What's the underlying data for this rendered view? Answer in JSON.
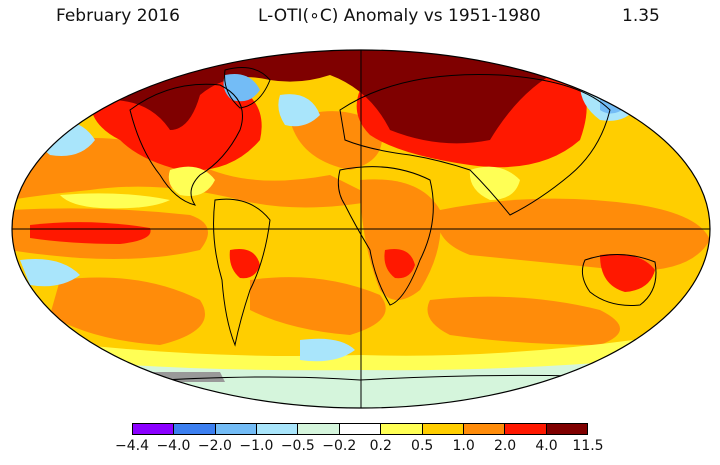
{
  "header": {
    "date": "February 2016",
    "title": "L-OTI(∘C) Anomaly vs 1951-1980",
    "global_mean": "1.35"
  },
  "legend": {
    "bins": [
      {
        "color": "#8b00ff"
      },
      {
        "color": "#3c7ff0"
      },
      {
        "color": "#73bcf6"
      },
      {
        "color": "#a9e5fb"
      },
      {
        "color": "#d5f5dc"
      },
      {
        "color": "#ffffff"
      },
      {
        "color": "#ffff55"
      },
      {
        "color": "#ffce00"
      },
      {
        "color": "#ff8c0a"
      },
      {
        "color": "#ff1800"
      },
      {
        "color": "#7f0000"
      }
    ],
    "labels": [
      "−4.4",
      "−4.0",
      "−2.0",
      "−1.0",
      "−0.5",
      "−0.2",
      "0.2",
      "0.5",
      "1.0",
      "2.0",
      "4.0",
      "11.5"
    ]
  },
  "map_colors": {
    "ocean_base": "#ffce00",
    "arctic": "#7f0000",
    "hot": "#ff1800",
    "warm": "#ff8c0a",
    "mild": "#ffff55",
    "cool": "#a9e5fb",
    "cold": "#73bcf6",
    "colder": "#3c7ff0",
    "near_zero": "#d5f5dc",
    "no_data": "#999999",
    "coast": "#000000"
  }
}
